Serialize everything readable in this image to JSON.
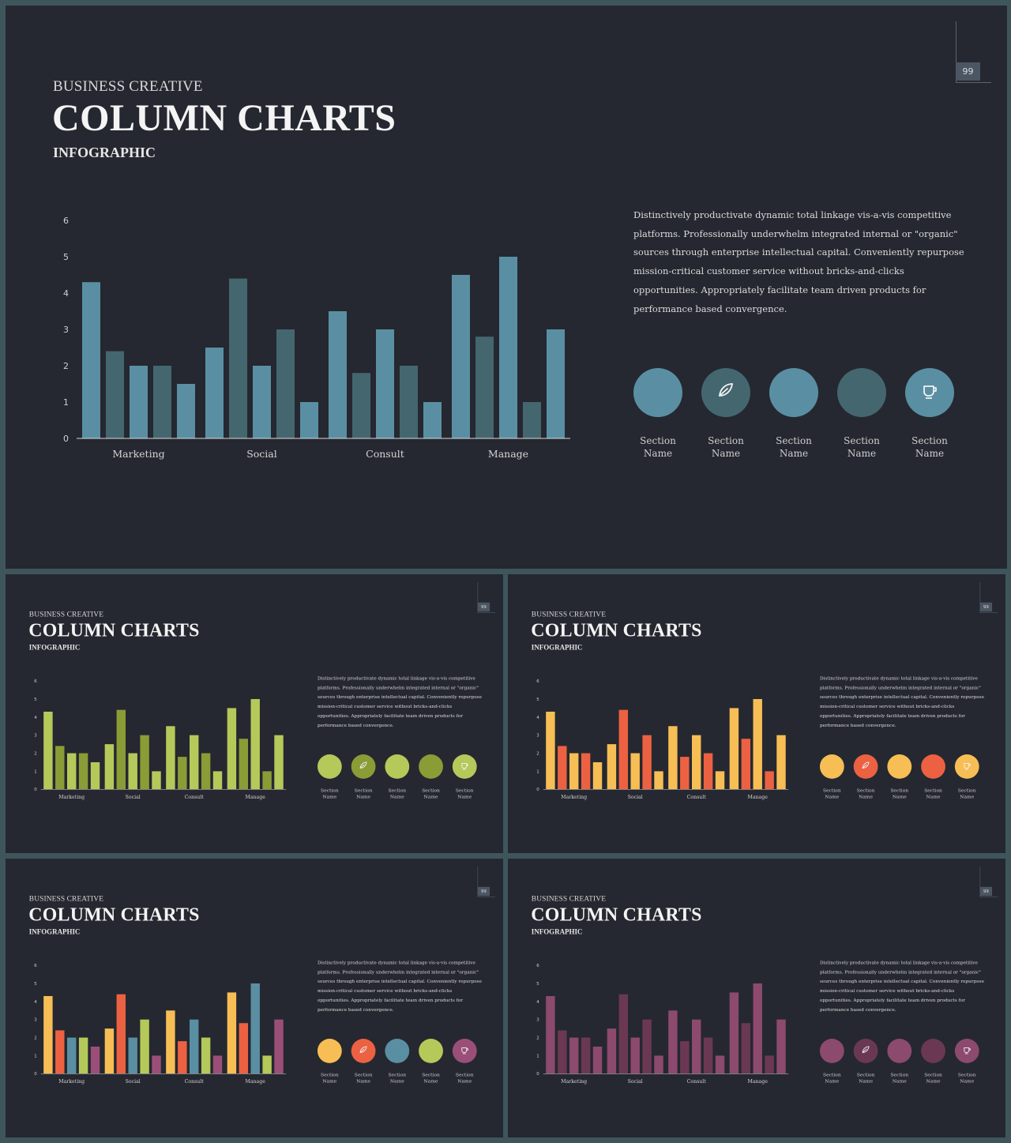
{
  "slide": {
    "page_number": "99",
    "kicker": "BUSINESS CREATIVE",
    "title": "COLUMN CHARTS",
    "subtitle": "INFOGRAPHIC",
    "description": "Distinctively productivate dynamic total linkage vis-a-vis competitive platforms. Professionally underwhelm integrated internal or \"organic\" sources through enterprise intellectual capital. Conveniently repurpose mission-critical customer service without bricks-and-clicks opportunities. Appropriately facilitate team driven products for performance based convergence.",
    "sections": [
      {
        "line1": "Section",
        "line2": "Name",
        "icon": "none"
      },
      {
        "line1": "Section",
        "line2": "Name",
        "icon": "leaf-glyph-icon"
      },
      {
        "line1": "Section",
        "line2": "Name",
        "icon": "none"
      },
      {
        "line1": "Section",
        "line2": "Name",
        "icon": "none"
      },
      {
        "line1": "Section",
        "line2": "Name",
        "icon": "cup-glyph-icon"
      }
    ]
  },
  "chart_data": {
    "type": "bar",
    "categories": [
      "Marketing",
      "Social",
      "Consult",
      "Manage"
    ],
    "series": [
      {
        "values": [
          4.3,
          2.5,
          3.5,
          4.5
        ]
      },
      {
        "values": [
          2.4,
          4.4,
          1.8,
          2.8
        ]
      },
      {
        "values": [
          2.0,
          2.0,
          3.0,
          5.0
        ]
      },
      {
        "values": [
          2.0,
          3.0,
          2.0,
          1.0
        ]
      },
      {
        "values": [
          1.5,
          1.0,
          1.0,
          3.0
        ]
      }
    ],
    "ylim": [
      0,
      6
    ],
    "yticks": [
      0,
      1,
      2,
      3,
      4,
      5,
      6
    ],
    "grid": false,
    "legend": "none"
  },
  "themes": [
    {
      "id": "main",
      "bars": [
        "#5a8fa3",
        "#44666f",
        "#5a8fa3",
        "#44666f",
        "#5a8fa3"
      ],
      "circles": [
        "#5a8fa3",
        "#44666f",
        "#5a8fa3",
        "#44666f",
        "#5a8fa3"
      ]
    },
    {
      "id": "green",
      "bars": [
        "#b5c95a",
        "#8a9c36",
        "#b5c95a",
        "#8a9c36",
        "#b5c95a"
      ],
      "circles": [
        "#b5c95a",
        "#8a9c36",
        "#b5c95a",
        "#8a9c36",
        "#b5c95a"
      ]
    },
    {
      "id": "orange",
      "bars": [
        "#f7be55",
        "#ec6142",
        "#f7be55",
        "#ec6142",
        "#f7be55"
      ],
      "circles": [
        "#f7be55",
        "#ec6142",
        "#f7be55",
        "#ec6142",
        "#f7be55"
      ]
    },
    {
      "id": "multi",
      "bars": [
        "#f7be55",
        "#ec6142",
        "#5a8fa3",
        "#b5c95a",
        "#9b4f78"
      ],
      "circles": [
        "#f7be55",
        "#ec6142",
        "#5a8fa3",
        "#b5c95a",
        "#9b4f78"
      ]
    },
    {
      "id": "purple",
      "bars": [
        "#8c4a6e",
        "#6b3854",
        "#8c4a6e",
        "#6b3854",
        "#8c4a6e"
      ],
      "circles": [
        "#8c4a6e",
        "#6b3854",
        "#8c4a6e",
        "#6b3854",
        "#8c4a6e"
      ]
    }
  ]
}
